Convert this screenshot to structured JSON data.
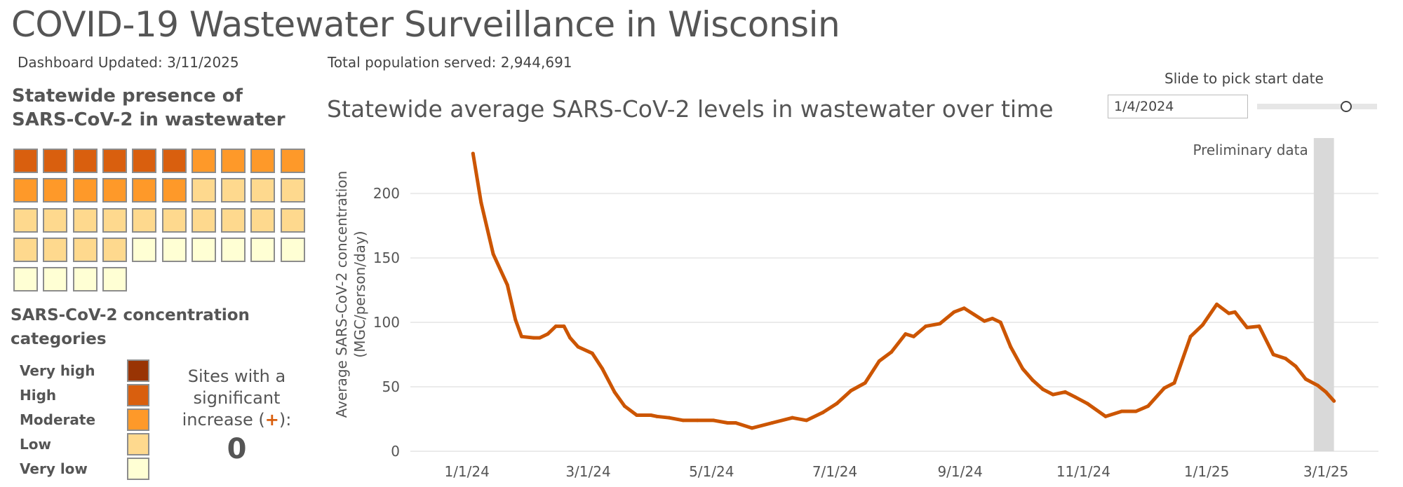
{
  "header": {
    "title": "COVID-19 Wastewater Surveillance in Wisconsin",
    "updated": "Dashboard Updated: 3/11/2025",
    "population": "Total population served: 2,944,691"
  },
  "presence": {
    "heading": "Statewide presence of SARS-CoV-2 in wastewater",
    "site_levels": [
      "High",
      "High",
      "High",
      "High",
      "High",
      "High",
      "Moderate",
      "Moderate",
      "Moderate",
      "Moderate",
      "Moderate",
      "Moderate",
      "Moderate",
      "Moderate",
      "Moderate",
      "Moderate",
      "Low",
      "Low",
      "Low",
      "Low",
      "Low",
      "Low",
      "Low",
      "Low",
      "Low",
      "Low",
      "Low",
      "Low",
      "Low",
      "Low",
      "Low",
      "Low",
      "Low",
      "Low",
      "Very low",
      "Very low",
      "Very low",
      "Very low",
      "Very low",
      "Very low",
      "Very low",
      "Very low",
      "Very low",
      "Very low"
    ]
  },
  "legend": {
    "heading": "SARS-CoV-2 concentration categories",
    "items": [
      {
        "label": "Very high",
        "color": "#993404"
      },
      {
        "label": "High",
        "color": "#d95f0e"
      },
      {
        "label": "Moderate",
        "color": "#fe9929"
      },
      {
        "label": "Low",
        "color": "#fed98e"
      },
      {
        "label": "Very low",
        "color": "#ffffd4"
      }
    ]
  },
  "sites": {
    "text_before": "Sites with a significant increase (",
    "plus_symbol": "+",
    "text_after": "):",
    "count": "0"
  },
  "slider": {
    "label": "Slide to pick start date",
    "value": "1/4/2024",
    "position_fraction": 0.74
  },
  "chart_data": {
    "type": "line",
    "title": "Statewide average SARS-CoV-2 levels in wastewater over time",
    "ylabel_line1": "Average SARS-CoV-2 concentration",
    "ylabel_line2": "(MGC/person/day)",
    "xlabel": "",
    "ylim": [
      0,
      243
    ],
    "xlim": [
      "2023-12-04",
      "2025-03-27"
    ],
    "yticks": [
      0,
      50,
      100,
      150,
      200
    ],
    "xticks": [
      {
        "date": "2024-01-01",
        "label": "1/1/24"
      },
      {
        "date": "2024-03-01",
        "label": "3/1/24"
      },
      {
        "date": "2024-05-01",
        "label": "5/1/24"
      },
      {
        "date": "2024-07-01",
        "label": "7/1/24"
      },
      {
        "date": "2024-09-01",
        "label": "9/1/24"
      },
      {
        "date": "2024-11-01",
        "label": "11/1/24"
      },
      {
        "date": "2025-01-01",
        "label": "1/1/25"
      },
      {
        "date": "2025-03-01",
        "label": "3/1/25"
      }
    ],
    "grid": true,
    "line_color": "#cc5500",
    "preliminary": {
      "label": "Preliminary data",
      "start": "2025-02-23",
      "end": "2025-03-05",
      "color": "#d9d9d9"
    },
    "x": [
      "2024-01-04",
      "2024-01-08",
      "2024-01-14",
      "2024-01-21",
      "2024-01-25",
      "2024-01-28",
      "2024-02-03",
      "2024-02-06",
      "2024-02-10",
      "2024-02-14",
      "2024-02-18",
      "2024-02-21",
      "2024-02-25",
      "2024-03-03",
      "2024-03-08",
      "2024-03-14",
      "2024-03-19",
      "2024-03-25",
      "2024-04-01",
      "2024-04-04",
      "2024-04-10",
      "2024-04-17",
      "2024-04-24",
      "2024-05-02",
      "2024-05-09",
      "2024-05-13",
      "2024-05-21",
      "2024-05-31",
      "2024-06-10",
      "2024-06-17",
      "2024-06-25",
      "2024-07-02",
      "2024-07-09",
      "2024-07-16",
      "2024-07-23",
      "2024-07-29",
      "2024-08-05",
      "2024-08-09",
      "2024-08-15",
      "2024-08-22",
      "2024-08-29",
      "2024-09-03",
      "2024-09-08",
      "2024-09-13",
      "2024-09-17",
      "2024-09-21",
      "2024-09-26",
      "2024-10-02",
      "2024-10-07",
      "2024-10-12",
      "2024-10-17",
      "2024-10-23",
      "2024-10-28",
      "2024-11-03",
      "2024-11-12",
      "2024-11-20",
      "2024-11-27",
      "2024-12-03",
      "2024-12-11",
      "2024-12-16",
      "2024-12-24",
      "2024-12-30",
      "2025-01-06",
      "2025-01-12",
      "2025-01-15",
      "2025-01-21",
      "2025-01-27",
      "2025-02-03",
      "2025-02-09",
      "2025-02-14",
      "2025-02-19",
      "2025-02-25",
      "2025-03-01",
      "2025-03-05"
    ],
    "y": [
      231,
      193,
      153,
      129,
      102,
      89,
      88,
      88,
      91,
      97,
      97,
      88,
      81,
      76,
      64,
      46,
      35,
      28,
      28,
      27,
      26,
      24,
      24,
      24,
      22,
      22,
      18,
      22,
      26,
      24,
      30,
      37,
      47,
      53,
      70,
      77,
      91,
      89,
      97,
      99,
      108,
      111,
      106,
      101,
      103,
      100,
      81,
      64,
      55,
      48,
      44,
      46,
      42,
      37,
      27,
      31,
      31,
      35,
      49,
      53,
      89,
      98,
      114,
      107,
      108,
      96,
      97,
      75,
      72,
      66,
      56,
      51,
      46,
      39
    ]
  }
}
